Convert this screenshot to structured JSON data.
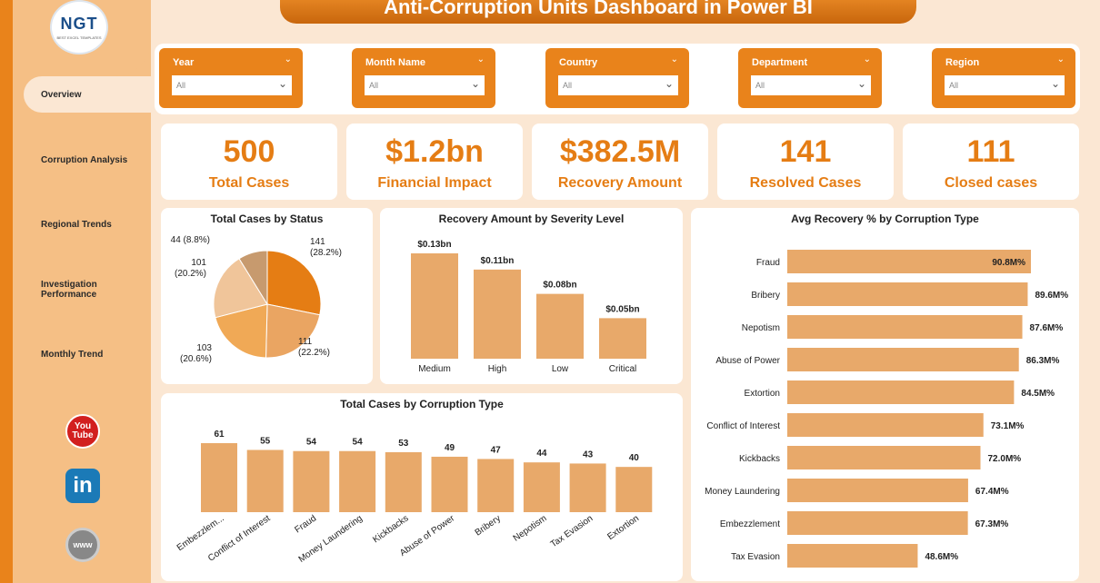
{
  "logo": {
    "text": "NGT",
    "subtext": "BEST EXCEL TEMPLATES"
  },
  "header": {
    "title": "Anti-Corruption Units Dashboard in Power BI"
  },
  "nav": {
    "items": [
      {
        "label": "Overview"
      },
      {
        "label": "Corruption Analysis"
      },
      {
        "label": "Regional Trends"
      },
      {
        "label": "Investigation Performance"
      },
      {
        "label": "Monthly Trend"
      }
    ]
  },
  "social": {
    "youtube": "You Tube",
    "linkedin": "in",
    "web": "www"
  },
  "filters": [
    {
      "label": "Year",
      "value": "All"
    },
    {
      "label": "Month Name",
      "value": "All"
    },
    {
      "label": "Country",
      "value": "All"
    },
    {
      "label": "Department",
      "value": "All"
    },
    {
      "label": "Region",
      "value": "All"
    }
  ],
  "kpis": [
    {
      "value": "500",
      "label": "Total Cases"
    },
    {
      "value": "$1.2bn",
      "label": "Financial Impact"
    },
    {
      "value": "$382.5M",
      "label": "Recovery Amount"
    },
    {
      "value": "141",
      "label": "Resolved Cases"
    },
    {
      "value": "111",
      "label": "Closed cases"
    }
  ],
  "colors": {
    "accent": "#e9831b",
    "bar": "#e8a96a",
    "bar_dark": "#e57d14"
  },
  "chart_data": [
    {
      "type": "pie",
      "title": "Total Cases by Status",
      "slices": [
        {
          "value": 141,
          "label": "141",
          "pct": "(28.2%)",
          "color": "#e57d14"
        },
        {
          "value": 111,
          "label": "111",
          "pct": "(22.2%)",
          "color": "#eaa562"
        },
        {
          "value": 103,
          "label": "103",
          "pct": "(20.6%)",
          "color": "#f0a956"
        },
        {
          "value": 101,
          "label": "101",
          "pct": "(20.2%)",
          "color": "#f0c59a"
        },
        {
          "value": 44,
          "label": "44",
          "pct": "(8.8%)",
          "color": "#c79a6e"
        }
      ]
    },
    {
      "type": "bar",
      "title": "Recovery Amount by Severity Level",
      "categories": [
        "Medium",
        "High",
        "Low",
        "Critical"
      ],
      "values": [
        0.13,
        0.11,
        0.08,
        0.05
      ],
      "labels": [
        "$0.13bn",
        "$0.11bn",
        "$0.08bn",
        "$0.05bn"
      ]
    },
    {
      "type": "bar",
      "title": "Total Cases by Corruption Type",
      "categories": [
        "Embezzlem...",
        "Conflict of Interest",
        "Fraud",
        "Money Laundering",
        "Kickbacks",
        "Abuse of Power",
        "Bribery",
        "Nepotism",
        "Tax Evasion",
        "Extortion"
      ],
      "values": [
        61,
        55,
        54,
        54,
        53,
        49,
        47,
        44,
        43,
        40
      ],
      "labels": [
        "61",
        "55",
        "54",
        "54",
        "53",
        "49",
        "47",
        "44",
        "43",
        "40"
      ]
    },
    {
      "type": "bar",
      "title": "Avg Recovery % by Corruption Type",
      "orientation": "horizontal",
      "categories": [
        "Fraud",
        "Bribery",
        "Nepotism",
        "Abuse of Power",
        "Extortion",
        "Conflict of Interest",
        "Kickbacks",
        "Money Laundering",
        "Embezzlement",
        "Tax Evasion"
      ],
      "values": [
        90.8,
        89.6,
        87.6,
        86.3,
        84.5,
        73.1,
        72.0,
        67.4,
        67.3,
        48.6
      ],
      "labels": [
        "90.8M%",
        "89.6M%",
        "87.6M%",
        "86.3M%",
        "84.5M%",
        "73.1M%",
        "72.0M%",
        "67.4M%",
        "67.3M%",
        "48.6M%"
      ]
    }
  ]
}
